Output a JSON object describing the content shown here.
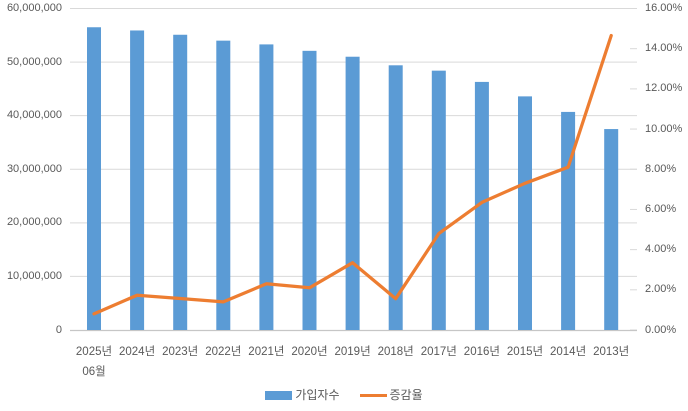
{
  "chart_data": {
    "type": "bar",
    "subtype": "combo-bar-line-dual-axis",
    "title": "",
    "categories": [
      "2025년\n06월",
      "2024년",
      "2023년",
      "2022년",
      "2021년",
      "2020년",
      "2019년",
      "2018년",
      "2017년",
      "2016년",
      "2015년",
      "2014년",
      "2013년"
    ],
    "series": [
      {
        "name": "가입자수",
        "type": "bar",
        "axis": "left",
        "color": "#5B9BD5",
        "values": [
          56500000,
          55900000,
          55100000,
          54000000,
          53300000,
          52100000,
          51000000,
          49400000,
          48400000,
          46300000,
          43600000,
          40700000,
          37500000
        ]
      },
      {
        "name": "증감율",
        "type": "line",
        "axis": "right",
        "color": "#ED7D31",
        "values": [
          0.8,
          1.73,
          1.57,
          1.4,
          2.3,
          2.1,
          3.35,
          1.56,
          4.8,
          6.35,
          7.3,
          8.1,
          14.65
        ]
      }
    ],
    "left_axis": {
      "min": 0,
      "max": 60000000,
      "step": 10000000,
      "tick_labels": [
        "0",
        "10,000,000",
        "20,000,000",
        "30,000,000",
        "40,000,000",
        "50,000,000",
        "60,000,000"
      ]
    },
    "right_axis": {
      "min": 0,
      "max": 16,
      "step": 2,
      "tick_labels": [
        "0.00%",
        "2.00%",
        "4.00%",
        "6.00%",
        "8.00%",
        "10.00%",
        "12.00%",
        "14.00%",
        "16.00%"
      ]
    },
    "grid": true,
    "legend_position": "bottom"
  },
  "colors": {
    "bar": "#5B9BD5",
    "line": "#ED7D31",
    "gridline": "#D9D9D9",
    "axis_line": "#C6C6C6",
    "text": "#595959",
    "background": "#FFFFFF"
  }
}
